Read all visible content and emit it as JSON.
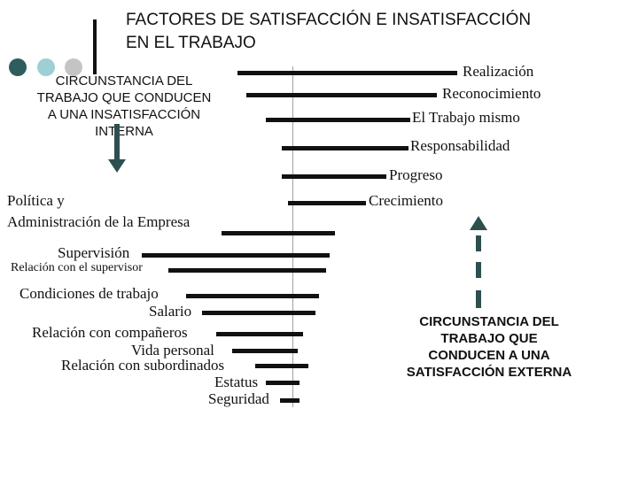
{
  "title": {
    "line1": "FACTORES DE SATISFACCIÓN E INSATISFACCIÓN",
    "line2": "EN EL TRABAJO"
  },
  "decor": {
    "dot_colors": [
      "#2f5d5d",
      "#9ecfd3",
      "#c4c4c4"
    ]
  },
  "left_block": [
    "CIRCUNSTANCIA DEL",
    "TRABAJO QUE CONDUCEN",
    "A UNA INSATISFACCIÓN",
    "INTERNA"
  ],
  "right_block": [
    "CIRCUNSTANCIA DEL",
    "TRABAJO QUE",
    "CONDUCEN A UNA",
    "SATISFACCIÓN EXTERNA"
  ],
  "satisfiers": [
    "Realización",
    "Reconocimiento",
    "El Trabajo mismo",
    "Responsabilidad",
    "Progreso",
    "Crecimiento"
  ],
  "dissatisfiers": {
    "politica1": "Política y",
    "politica2": "Administración de la Empresa",
    "supervision": "Supervisión",
    "relacion_supervisor": "Relación con el supervisor",
    "condiciones": "Condiciones de trabajo",
    "salario": "Salario",
    "companeros": "Relación con compañeros",
    "vida": "Vida personal",
    "subordinados": "Relación con subordinados",
    "estatus": "Estatus",
    "seguridad": "Seguridad"
  }
}
